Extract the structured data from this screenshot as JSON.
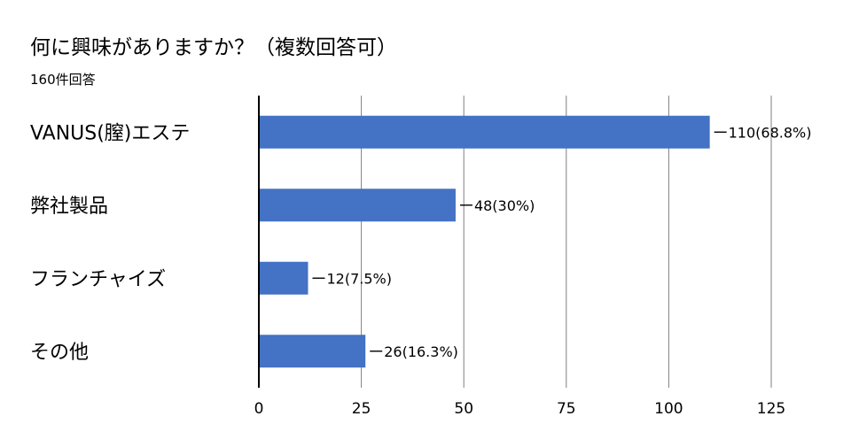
{
  "title": "何に興味がありますか？（複数回答可）",
  "subtitle": "160件回答",
  "chart_data": {
    "type": "bar",
    "orientation": "horizontal",
    "categories": [
      "VANUS(膣)エステ",
      "弊社製品",
      "フランチャイズ",
      "その他"
    ],
    "values": [
      110,
      48,
      12,
      26
    ],
    "data_labels": [
      "110(68.8%)",
      "48(30%)",
      "12(7.5%)",
      "26(16.3%)"
    ],
    "xlim": [
      0,
      125
    ],
    "xticks": [
      0,
      25,
      50,
      75,
      100,
      125
    ],
    "grid": true,
    "bar_color": "#4472c4"
  }
}
